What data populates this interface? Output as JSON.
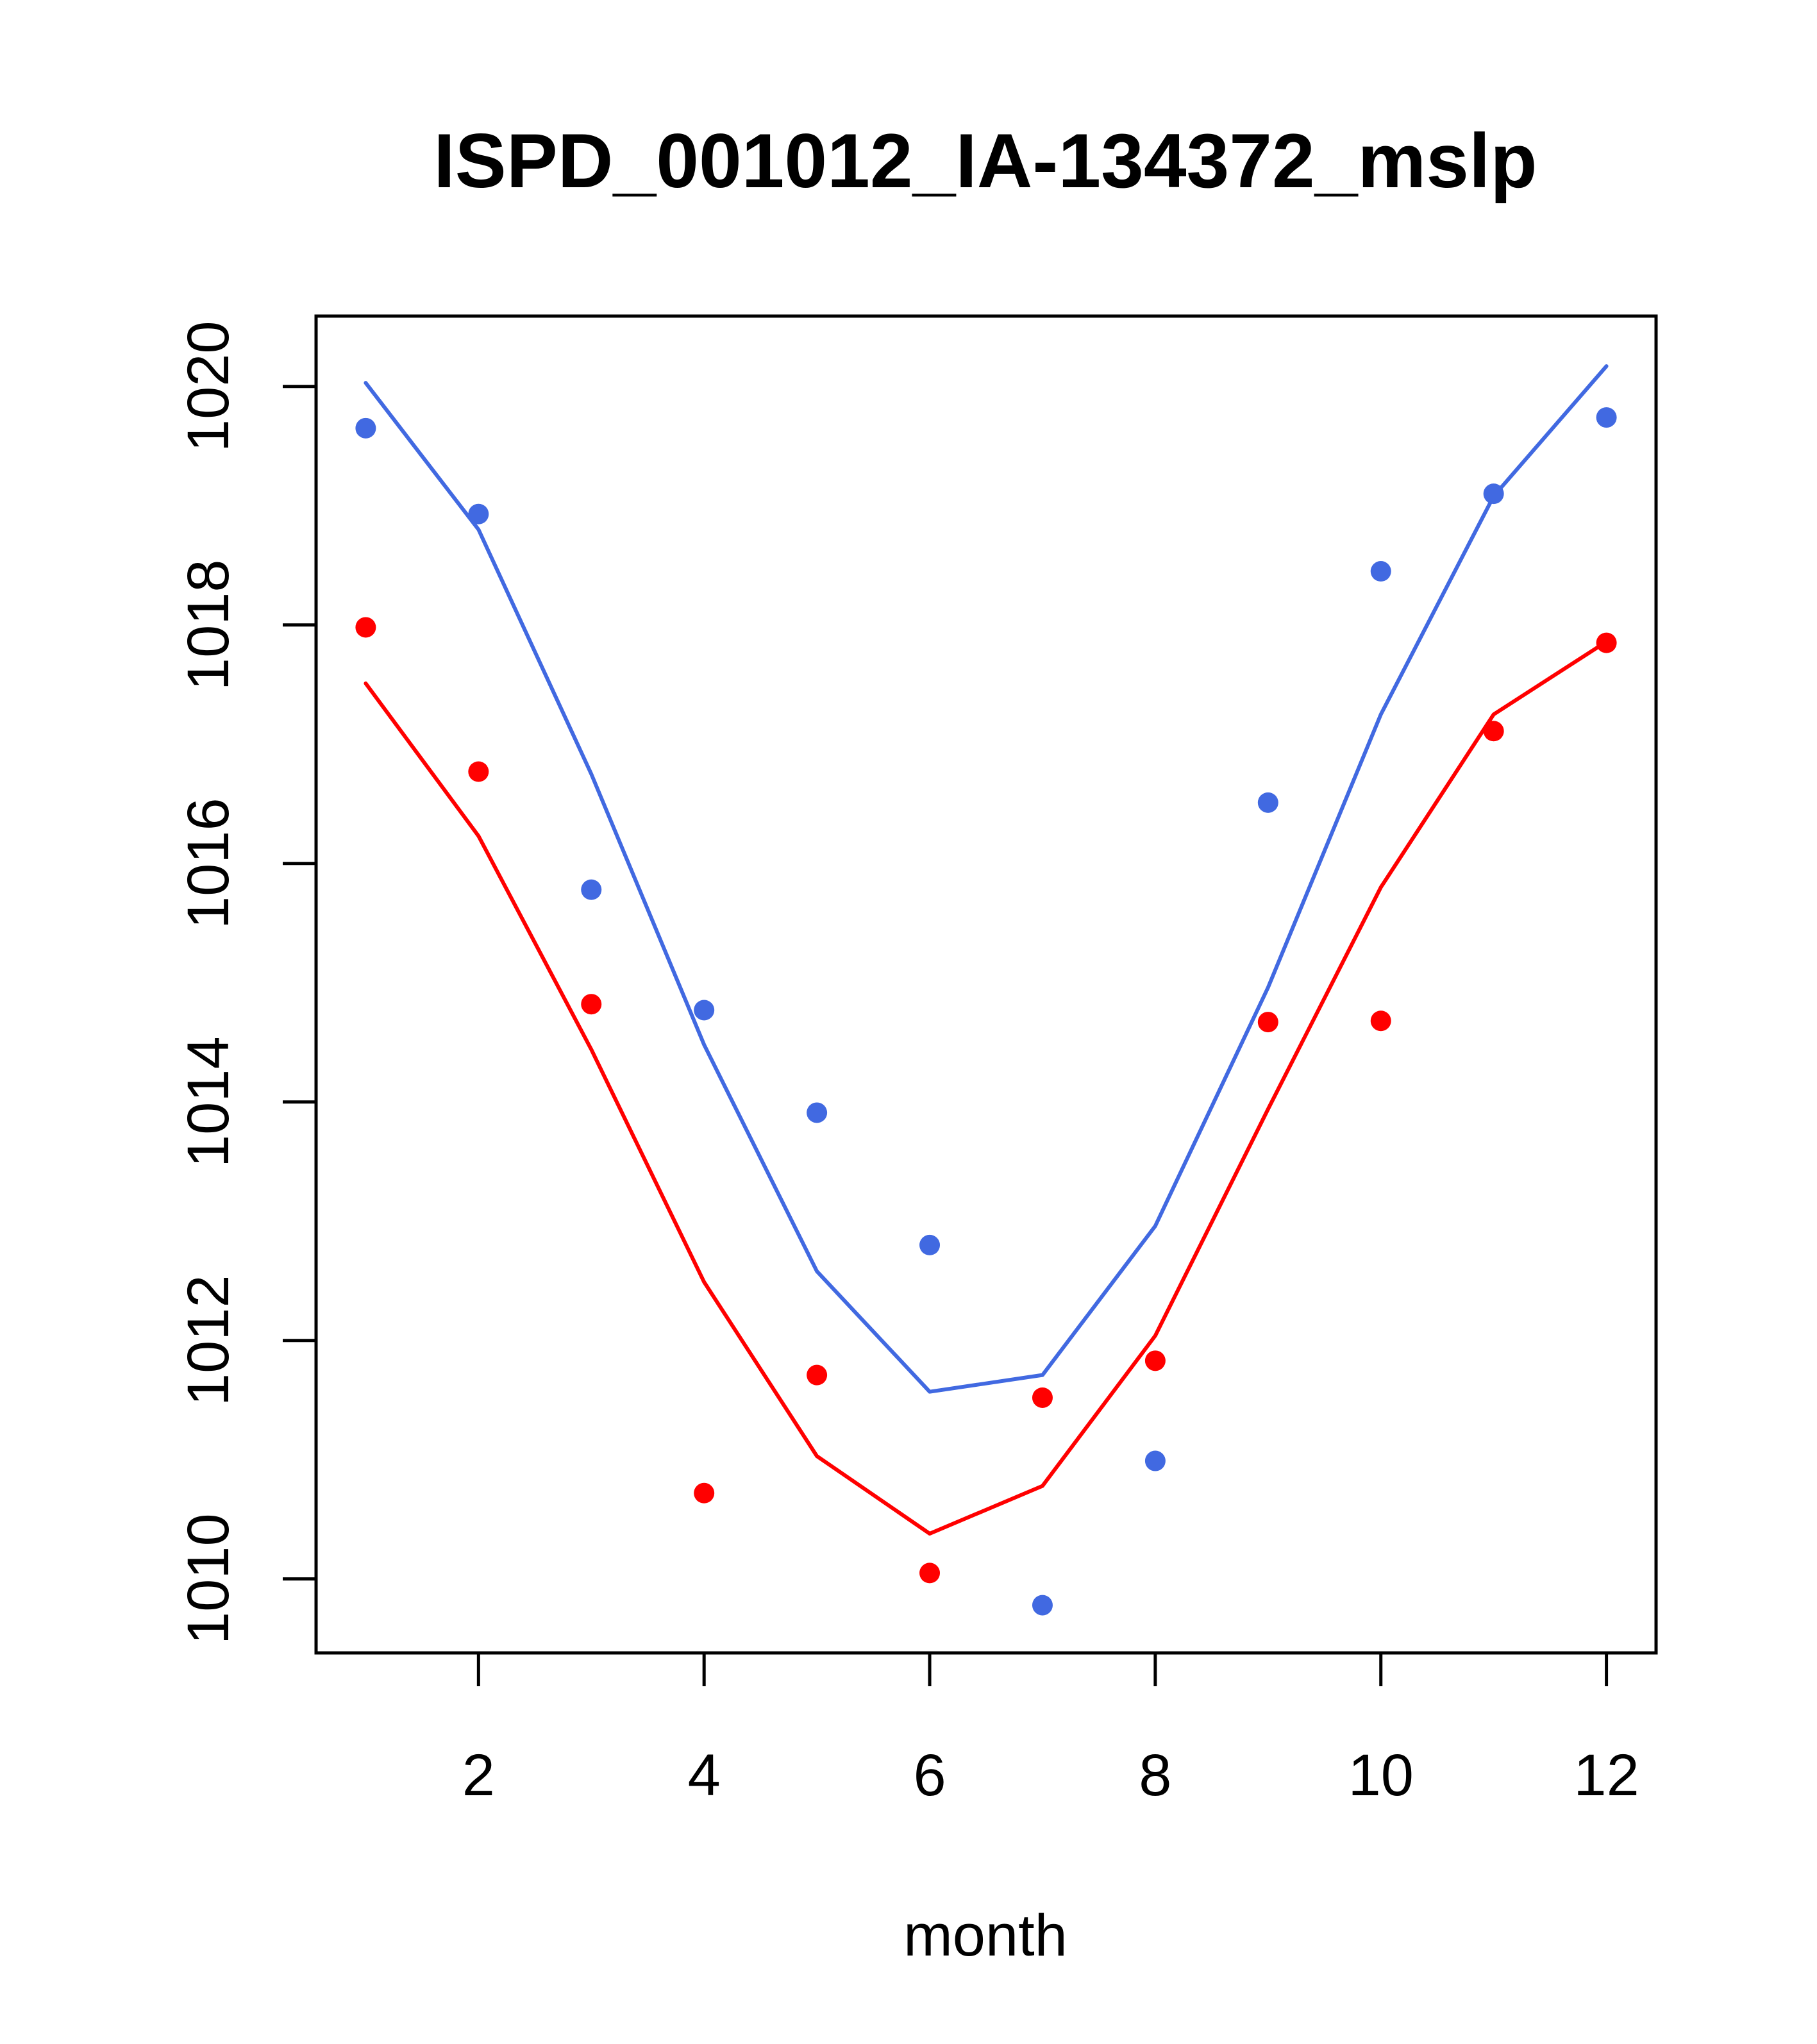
{
  "chart_data": {
    "type": "line",
    "title": "ISPD_001012_IA-134372_mslp",
    "xlabel": "month",
    "ylabel": "",
    "xlim": [
      0.56,
      12.44
    ],
    "ylim": [
      1009.38,
      1020.59
    ],
    "xticks": [
      2,
      4,
      6,
      8,
      10,
      12
    ],
    "yticks": [
      1010,
      1012,
      1014,
      1016,
      1018,
      1020
    ],
    "xtick_labels": [
      "2",
      "4",
      "6",
      "8",
      "10",
      "12"
    ],
    "ytick_labels": [
      "1010",
      "1012",
      "1014",
      "1016",
      "1018",
      "1020"
    ],
    "grid": false,
    "legend": "none",
    "x": [
      1,
      2,
      3,
      4,
      5,
      6,
      7,
      8,
      9,
      10,
      11,
      12
    ],
    "series": [
      {
        "name": "blue-points",
        "kind": "points",
        "color": "#4169E1",
        "values": [
          1019.65,
          1018.93,
          1015.78,
          1014.77,
          1013.91,
          1012.8,
          1009.78,
          1010.99,
          1016.51,
          1018.45,
          1019.1,
          1019.74
        ]
      },
      {
        "name": "blue-line",
        "kind": "line",
        "color": "#4169E1",
        "values": [
          1020.03,
          1018.8,
          1016.75,
          1014.48,
          1012.58,
          1011.57,
          1011.71,
          1012.96,
          1014.96,
          1017.25,
          1019.08,
          1020.17
        ]
      },
      {
        "name": "red-points",
        "kind": "points",
        "color": "#FF0000",
        "values": [
          1017.98,
          1016.77,
          1014.82,
          1010.72,
          1011.71,
          1010.05,
          1011.52,
          1011.83,
          1014.67,
          1014.68,
          1017.11,
          1017.85
        ]
      },
      {
        "name": "red-line",
        "kind": "line",
        "color": "#FF0000",
        "values": [
          1017.51,
          1016.23,
          1014.44,
          1012.49,
          1011.03,
          1010.38,
          1010.78,
          1012.04,
          1013.94,
          1015.8,
          1017.25,
          1017.86
        ]
      }
    ]
  }
}
